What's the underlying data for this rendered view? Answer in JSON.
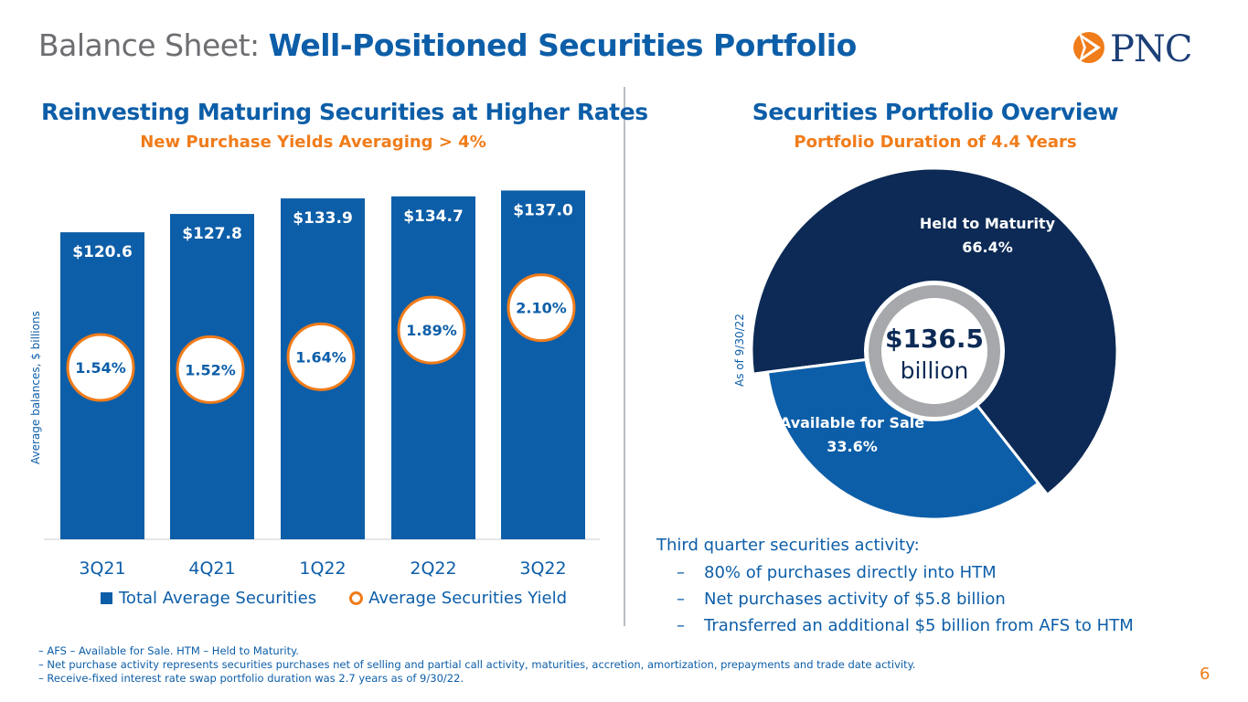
{
  "header": {
    "title_prefix": "Balance Sheet:",
    "title_main": "Well-Positioned Securities Portfolio",
    "logo_text": "PNC"
  },
  "left": {
    "title": "Reinvesting Maturing Securities at Higher Rates",
    "subtitle": "New Purchase Yields Averaging > 4%"
  },
  "right": {
    "title": "Securities Portfolio Overview",
    "subtitle": "Portfolio Duration of 4.4 Years",
    "as_of": "As of 9/30/22",
    "center_value": "$136.5",
    "center_unit": "billion"
  },
  "chart_data": [
    {
      "type": "bar",
      "title": "Reinvesting Maturing Securities at Higher Rates",
      "ylabel": "Average balances, $ billions",
      "categories": [
        "3Q21",
        "4Q21",
        "1Q22",
        "2Q22",
        "3Q22"
      ],
      "ylim": [
        0,
        145
      ],
      "series": [
        {
          "name": "Total Average Securities",
          "values": [
            120.6,
            127.8,
            133.9,
            134.7,
            137.0
          ],
          "labels": [
            "$120.6",
            "$127.8",
            "$133.9",
            "$134.7",
            "$137.0"
          ],
          "color": "#0d5ea8"
        },
        {
          "name": "Average Securities Yield",
          "values": [
            1.54,
            1.52,
            1.64,
            1.89,
            2.1
          ],
          "labels": [
            "1.54%",
            "1.52%",
            "1.64%",
            "1.89%",
            "2.10%"
          ],
          "color": "#f07c1a"
        }
      ]
    },
    {
      "type": "pie",
      "title": "Securities Portfolio Overview",
      "total": 136.5,
      "slices": [
        {
          "label": "Held to Maturity",
          "value": 66.4,
          "display": "66.4%",
          "color": "#0c2a55"
        },
        {
          "label": "Available for Sale",
          "value": 33.6,
          "display": "33.6%",
          "color": "#0d5ea8"
        }
      ]
    }
  ],
  "activity": {
    "heading": "Third quarter securities activity:",
    "items": [
      "80% of purchases directly into HTM",
      "Net purchases activity of $5.8 billion",
      "Transferred an additional $5 billion from AFS to HTM"
    ]
  },
  "footnotes": [
    "AFS – Available for Sale. HTM – Held to Maturity.",
    "Net purchase activity represents securities purchases net of selling and partial call activity, maturities, accretion, amortization, prepayments and trade date activity.",
    "Receive-fixed interest rate swap portfolio duration was 2.7 years as of 9/30/22."
  ],
  "page_number": "6",
  "colors": {
    "navy": "#0c2a55",
    "blue": "#0d5ea8",
    "orange": "#f07c1a",
    "gray": "#6d6e71"
  }
}
